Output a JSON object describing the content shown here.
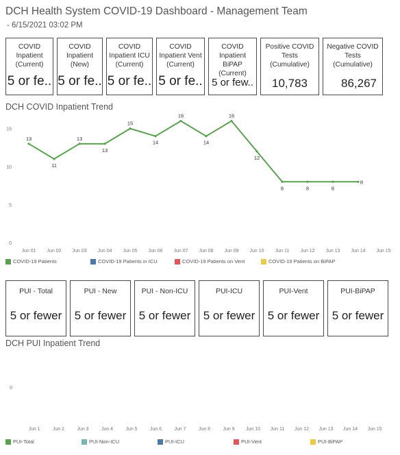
{
  "header": {
    "title": "DCH Health System COVID-19 Dashboard - Management Team",
    "subtitle": "- 6/15/2021 03:02 PM"
  },
  "covid_kpis": [
    {
      "label": "COVID\nInpatient\n(Current)",
      "value": "5 or fe.."
    },
    {
      "label": "COVID\nInpatient\n(New)",
      "value": "5 or fe.."
    },
    {
      "label": "COVID\nInpatient ICU\n(Current)",
      "value": "5 or fe.."
    },
    {
      "label": "COVID\nInpatient Vent\n(Current)",
      "value": "5 or fe.."
    },
    {
      "label": "COVID\nInpatient BiPAP\n(Current)",
      "value": "5 or few.."
    },
    {
      "label": "Positive COVID\nTests\n(Cumulative)",
      "value": "10,783"
    },
    {
      "label": "Negative COVID\nTests\n(Cumulative)",
      "value": "86,267"
    }
  ],
  "pui_kpis": [
    {
      "label": "PUI - Total",
      "value": "5 or fewer"
    },
    {
      "label": "PUI - New",
      "value": "5 or fewer"
    },
    {
      "label": "PUI - Non-ICU",
      "value": "5 or fewer"
    },
    {
      "label": "PUI-ICU",
      "value": "5 or fewer"
    },
    {
      "label": "PUI-Vent",
      "value": "5 or fewer"
    },
    {
      "label": "PUI-BiPAP",
      "value": "5 or fewer"
    }
  ],
  "colors": {
    "covid_patients": "#59a14f",
    "icu": "#4e79a7",
    "vent": "#e15759",
    "bipap": "#edc948",
    "pui_non_icu": "#76b7b2"
  },
  "chart_data": [
    {
      "type": "line",
      "title": "DCH COVID Inpatient Trend",
      "categories": [
        "Jun 01",
        "Jun 02",
        "Jun 03",
        "Jun 04",
        "Jun 05",
        "Jun 06",
        "Jun 07",
        "Jun 08",
        "Jun 09",
        "Jun 10",
        "Jun 11",
        "Jun 12",
        "Jun 13",
        "Jun 14",
        "Jun 15"
      ],
      "yticks": [
        0,
        5,
        10,
        15
      ],
      "ylim": [
        0,
        16.5
      ],
      "grid": false,
      "legend_position": "bottom",
      "legend": [
        "COVID-19 Patients",
        "COVID-19 Patients in ICU",
        "COVID-19 Patients on Vent",
        "COVID-19 Patients on BiPAP"
      ],
      "series": [
        {
          "name": "COVID-19 Patients",
          "values": [
            13,
            11,
            13,
            13,
            15,
            14,
            16,
            14,
            16,
            12,
            8,
            8,
            8,
            8,
            null
          ]
        }
      ]
    },
    {
      "type": "line",
      "title": "DCH PUI Inpatient Trend",
      "categories": [
        "Jun 1",
        "Jun 2",
        "Jun 3",
        "Jun 4",
        "Jun 5",
        "Jun 6",
        "Jun 7",
        "Jun 8",
        "Jun 9",
        "Jun 10",
        "Jun 11",
        "Jun 12",
        "Jun 13",
        "Jun 14",
        "Jun 15"
      ],
      "yticks": [
        0
      ],
      "grid": false,
      "legend_position": "bottom",
      "legend": [
        "PUI-Total",
        "PUI-Non-ICU",
        "PUI-ICU",
        "PUI-Vent",
        "PUI-BiPAP"
      ],
      "series": []
    }
  ]
}
